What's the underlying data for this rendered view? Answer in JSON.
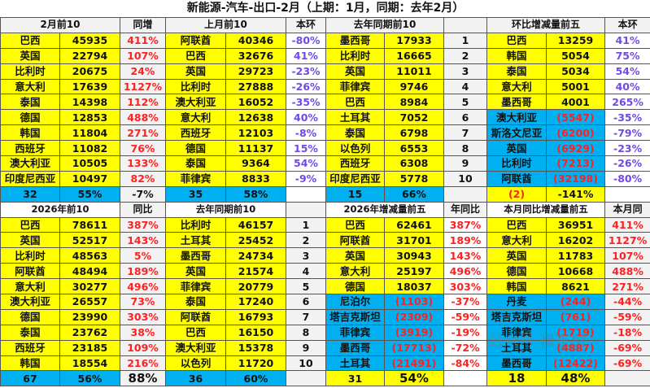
{
  "title": "新能源-汽车-出口-2月（上期：1月，同期：去年2月）",
  "watermark": "公众号·崔东树",
  "colors": {
    "highlight_yellow": "#ffff00",
    "negative_blue": "#00b0f0",
    "red_text": "#ff2020",
    "purple_text": "#7048e8"
  },
  "top": {
    "headers": [
      "2月前10",
      "同增",
      "上月前10",
      "本环",
      "去年同期前10",
      "",
      "环比增减量前五",
      "本环"
    ],
    "rows": [
      [
        "巴西",
        "45935",
        "411%",
        "阿联酋",
        "40346",
        "-80%",
        "墨西哥",
        "17933",
        "1",
        "巴西",
        "13259",
        "41%"
      ],
      [
        "英国",
        "22794",
        "107%",
        "巴西",
        "32676",
        "41%",
        "比利时",
        "16665",
        "2",
        "韩国",
        "5054",
        "75%"
      ],
      [
        "比利时",
        "20675",
        "24%",
        "英国",
        "29723",
        "-23%",
        "英国",
        "11011",
        "3",
        "泰国",
        "5034",
        "54%"
      ],
      [
        "意大利",
        "17639",
        "1127%",
        "比利时",
        "27888",
        "-26%",
        "菲律宾",
        "9746",
        "4",
        "意大利",
        "5001",
        "40%"
      ],
      [
        "泰国",
        "14398",
        "112%",
        "澳大利亚",
        "16052",
        "-35%",
        "巴西",
        "8984",
        "5",
        "墨西哥",
        "4001",
        "265%"
      ],
      [
        "德国",
        "12853",
        "488%",
        "意大利",
        "12638",
        "40%",
        "土耳其",
        "7052",
        "6",
        "澳大利亚",
        "(5547)",
        "-35%"
      ],
      [
        "韩国",
        "11804",
        "271%",
        "西班牙",
        "12103",
        "-8%",
        "泰国",
        "6798",
        "7",
        "斯洛文尼亚",
        "(6200)",
        "-79%"
      ],
      [
        "西班牙",
        "11082",
        "76%",
        "德国",
        "11137",
        "15%",
        "以色列",
        "6553",
        "8",
        "英国",
        "(6929)",
        "-23%"
      ],
      [
        "澳大利亚",
        "10505",
        "133%",
        "泰国",
        "9364",
        "54%",
        "西班牙",
        "6308",
        "9",
        "比利时",
        "(7213)",
        "-26%"
      ],
      [
        "印度尼西亚",
        "10497",
        "82%",
        "菲律宾",
        "8833",
        "-9%",
        "印度尼西亚",
        "5778",
        "10",
        "阿联酋",
        "(32198)",
        "-80%"
      ]
    ],
    "summary": [
      "32",
      "55%",
      "-7%",
      "35",
      "58%",
      "",
      "15",
      "66%",
      "",
      "(2)",
      "-141%",
      ""
    ]
  },
  "bottom": {
    "headers": [
      "2026年前10",
      "同比",
      "去年同期前10",
      "",
      "2026年增减量前五",
      "年同比",
      "本月同比增减量前五",
      "本月同"
    ],
    "rows": [
      [
        "巴西",
        "78611",
        "387%",
        "比利时",
        "46157",
        "1",
        "巴西",
        "62461",
        "387%",
        "巴西",
        "36951",
        "411%"
      ],
      [
        "英国",
        "52517",
        "143%",
        "土耳其",
        "25452",
        "2",
        "阿联酋",
        "31701",
        "189%",
        "意大利",
        "16202",
        "1127%"
      ],
      [
        "比利时",
        "48563",
        "5%",
        "墨西哥",
        "24734",
        "3",
        "英国",
        "30943",
        "143%",
        "英国",
        "11783",
        "107%"
      ],
      [
        "阿联酋",
        "48494",
        "189%",
        "英国",
        "21574",
        "4",
        "意大利",
        "25197",
        "496%",
        "德国",
        "10668",
        "488%"
      ],
      [
        "意大利",
        "30277",
        "496%",
        "菲律宾",
        "20779",
        "5",
        "德国",
        "18037",
        "303%",
        "韩国",
        "8621",
        "271%"
      ],
      [
        "澳大利亚",
        "26557",
        "73%",
        "泰国",
        "17240",
        "6",
        "尼泊尔",
        "(1103)",
        "-37%",
        "丹麦",
        "(244)",
        "-44%"
      ],
      [
        "德国",
        "23990",
        "303%",
        "阿联酋",
        "16793",
        "7",
        "塔吉克斯坦",
        "(2309)",
        "-59%",
        "塔吉克斯坦",
        "(761)",
        "-59%"
      ],
      [
        "泰国",
        "23762",
        "38%",
        "巴西",
        "16150",
        "8",
        "菲律宾",
        "(3919)",
        "-19%",
        "菲律宾",
        "(1719)",
        "-18%"
      ],
      [
        "西班牙",
        "23185",
        "109%",
        "澳大利亚",
        "15378",
        "9",
        "墨西哥",
        "(17713)",
        "-72%",
        "土耳其",
        "(4887)",
        "-69%"
      ],
      [
        "韩国",
        "18554",
        "216%",
        "以色列",
        "11720",
        "10",
        "土耳其",
        "(21491)",
        "-84%",
        "墨西哥",
        "(12422)",
        "-69%"
      ]
    ],
    "summary": [
      "67",
      "56%",
      "88%",
      "36",
      "60%",
      "",
      "31",
      "54%",
      "",
      "18",
      "48%",
      ""
    ]
  }
}
